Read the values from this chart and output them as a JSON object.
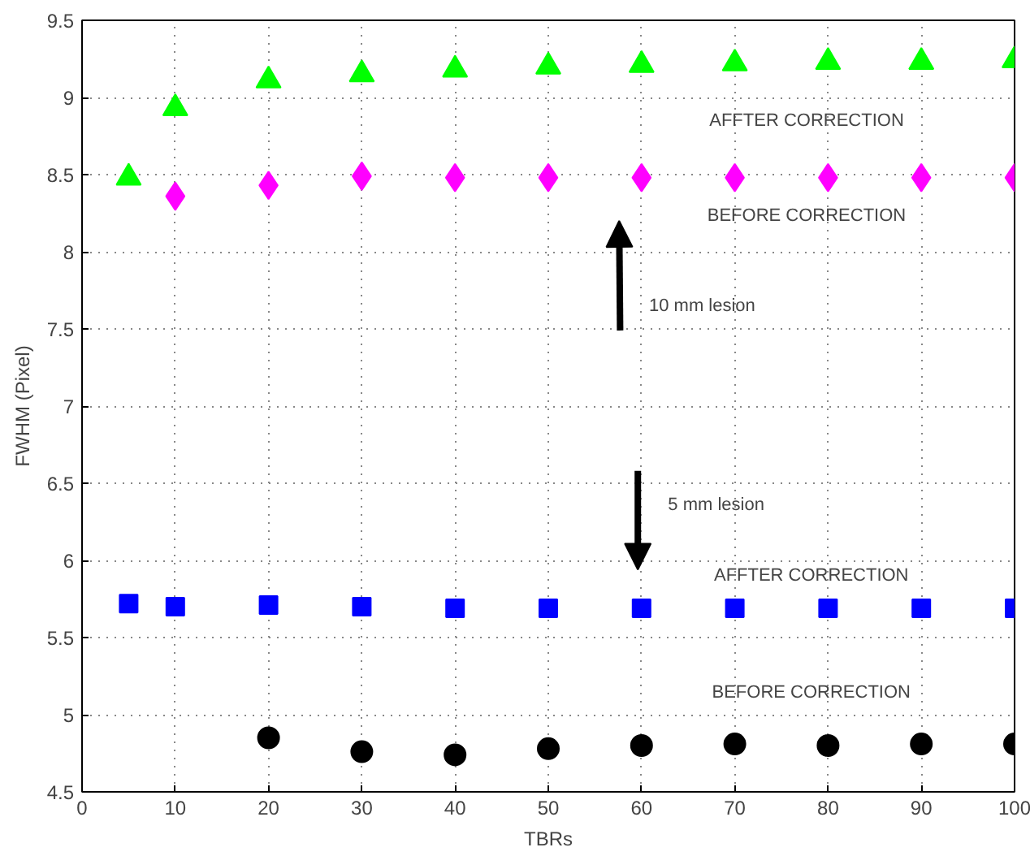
{
  "chart_data": {
    "type": "scatter",
    "xlabel": "TBRs",
    "ylabel": "FWHM (Pixel)",
    "xlim": [
      0,
      100
    ],
    "xticks": [
      0,
      10,
      20,
      30,
      40,
      50,
      60,
      70,
      80,
      90,
      100
    ],
    "ylim": [
      4.5,
      9.5
    ],
    "yticks": [
      4.5,
      5,
      5.5,
      6,
      6.5,
      7,
      7.5,
      8,
      8.5,
      9,
      9.5
    ],
    "grid": true,
    "series": [
      {
        "color": "#00ff00",
        "marker": "triangle",
        "x": [
          5,
          10,
          20,
          30,
          40,
          50,
          60,
          70,
          80,
          90,
          100
        ],
        "values": [
          8.48,
          8.93,
          9.11,
          9.15,
          9.18,
          9.2,
          9.21,
          9.22,
          9.23,
          9.23,
          9.24
        ]
      },
      {
        "color": "#ff00ff",
        "marker": "diamond",
        "x": [
          10,
          20,
          30,
          40,
          50,
          60,
          70,
          80,
          90,
          100
        ],
        "values": [
          8.36,
          8.43,
          8.49,
          8.48,
          8.48,
          8.48,
          8.48,
          8.48,
          8.48,
          8.48
        ]
      },
      {
        "color": "#0000ff",
        "marker": "square",
        "x": [
          5,
          10,
          20,
          30,
          40,
          50,
          60,
          70,
          80,
          90,
          100
        ],
        "values": [
          5.72,
          5.7,
          5.71,
          5.7,
          5.69,
          5.69,
          5.69,
          5.69,
          5.69,
          5.69,
          5.69
        ]
      },
      {
        "color": "#000000",
        "marker": "circle",
        "x": [
          20,
          30,
          40,
          50,
          60,
          70,
          80,
          90,
          100
        ],
        "values": [
          4.85,
          4.76,
          4.74,
          4.78,
          4.8,
          4.81,
          4.8,
          4.81,
          4.81
        ]
      }
    ],
    "annotations": [
      "AFFTER CORRECTION",
      "BEFORE CORRECTION",
      "10 mm lesion",
      "5 mm lesion",
      "AFFTER CORRECTION",
      "BEFORE CORRECTION"
    ]
  }
}
